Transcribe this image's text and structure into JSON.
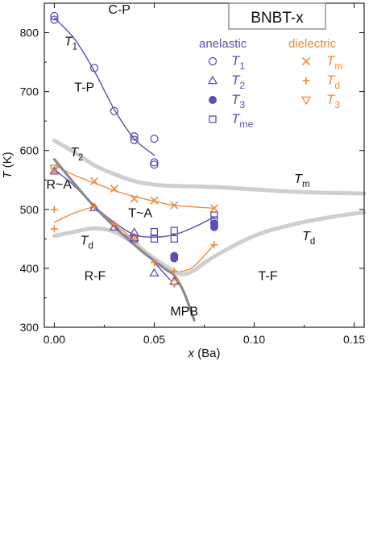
{
  "chart_data": {
    "type": "scatter",
    "title": "BNBT-x",
    "xlabel": "x (Ba)",
    "ylabel": "T (K)",
    "xlim": [
      -0.005,
      0.155
    ],
    "ylim": [
      300,
      850
    ],
    "xticks": [
      0.0,
      0.05,
      0.1,
      0.15
    ],
    "xtick_labels": [
      "0.00",
      "0.05",
      "0.10",
      "0.15"
    ],
    "yticks": [
      300,
      400,
      500,
      600,
      700,
      800
    ],
    "ytick_labels": [
      "300",
      "400",
      "500",
      "600",
      "700",
      "800"
    ],
    "grid": false,
    "legend_placement": "top-right",
    "legend": {
      "anelastic_header": "anelastic",
      "dielectric_header": "dielectric",
      "anelastic_items": [
        {
          "base": "T",
          "sub": "1"
        },
        {
          "base": "T",
          "sub": "2"
        },
        {
          "base": "T",
          "sub": "3"
        },
        {
          "base": "T",
          "sub": "me"
        }
      ],
      "dielectric_items": [
        {
          "base": "T",
          "sub": "m"
        },
        {
          "base": "T",
          "sub": "d"
        },
        {
          "base": "T",
          "sub": "3"
        }
      ]
    },
    "colors": {
      "anelastic": "#5a4fb0",
      "dielectric": "#f08a3c",
      "boundary": "#cfcfcf",
      "mpb_line": "#8a8a8a",
      "text": "#111111"
    },
    "series": [
      {
        "name": "T1",
        "group": "anelastic",
        "marker": "circle-open",
        "x": [
          0.0,
          0.0,
          0.02,
          0.03,
          0.04,
          0.04,
          0.05,
          0.05,
          0.05
        ],
        "y": [
          828,
          822,
          740,
          667,
          624,
          618,
          620,
          580,
          576
        ]
      },
      {
        "name": "T2",
        "group": "anelastic",
        "marker": "triangle-open",
        "x": [
          0.0,
          0.02,
          0.03,
          0.04,
          0.04,
          0.05,
          0.06
        ],
        "y": [
          565,
          503,
          470,
          461,
          452,
          392,
          378
        ]
      },
      {
        "name": "T3",
        "group": "anelastic",
        "marker": "circle-filled",
        "x": [
          0.06,
          0.06,
          0.08,
          0.08
        ],
        "y": [
          421,
          417,
          476,
          470
        ]
      },
      {
        "name": "Tme",
        "group": "anelastic",
        "marker": "square-open",
        "x": [
          0.04,
          0.05,
          0.05,
          0.06,
          0.06,
          0.08,
          0.08
        ],
        "y": [
          450,
          462,
          450,
          464,
          450,
          490,
          482
        ]
      },
      {
        "name": "Tm",
        "group": "dielectric",
        "marker": "x",
        "x": [
          0.0,
          0.02,
          0.03,
          0.04,
          0.05,
          0.06,
          0.08
        ],
        "y": [
          565,
          548,
          535,
          518,
          515,
          507,
          502
        ]
      },
      {
        "name": "Td",
        "group": "dielectric",
        "marker": "plus",
        "x": [
          0.0,
          0.0,
          0.02,
          0.03,
          0.04,
          0.05,
          0.06,
          0.08
        ],
        "y": [
          500,
          467,
          505,
          475,
          450,
          410,
          395,
          440
        ]
      },
      {
        "name": "T3",
        "group": "dielectric",
        "marker": "triangle-down-open",
        "x": [
          0.0,
          0.06
        ],
        "y": [
          570,
          375
        ]
      }
    ],
    "curves": [
      {
        "group": "anelastic",
        "kind": "fit",
        "x": [
          0.0,
          0.01,
          0.02,
          0.03,
          0.04,
          0.05
        ],
        "y": [
          825,
          790,
          735,
          670,
          620,
          592
        ]
      },
      {
        "group": "anelastic",
        "kind": "fit",
        "x": [
          0.0,
          0.01,
          0.02,
          0.03,
          0.04,
          0.05,
          0.058
        ],
        "y": [
          568,
          540,
          505,
          470,
          445,
          410,
          380
        ]
      },
      {
        "group": "anelastic",
        "kind": "fit",
        "x": [
          0.02,
          0.03,
          0.04,
          0.05,
          0.06,
          0.07,
          0.08
        ],
        "y": [
          505,
          478,
          457,
          453,
          457,
          470,
          487
        ]
      },
      {
        "group": "dielectric",
        "kind": "fit",
        "x": [
          0.0,
          0.01,
          0.02,
          0.03,
          0.04,
          0.05,
          0.06,
          0.08
        ],
        "y": [
          575,
          558,
          545,
          532,
          522,
          514,
          507,
          502
        ]
      },
      {
        "group": "dielectric",
        "kind": "fit",
        "x": [
          0.0,
          0.01,
          0.02
        ],
        "y": [
          478,
          494,
          505
        ]
      },
      {
        "group": "dielectric",
        "kind": "fit",
        "x": [
          0.02,
          0.03,
          0.04,
          0.05,
          0.06,
          0.065,
          0.07,
          0.08
        ],
        "y": [
          505,
          475,
          448,
          415,
          396,
          396,
          404,
          440
        ]
      },
      {
        "group": "boundary",
        "kind": "phase",
        "x": [
          0.0,
          0.01,
          0.02,
          0.03,
          0.04,
          0.05,
          0.06,
          0.08,
          0.1,
          0.12,
          0.14,
          0.155
        ],
        "y": [
          617,
          597,
          575,
          560,
          548,
          542,
          540,
          538,
          534,
          530,
          528,
          527
        ]
      },
      {
        "group": "boundary",
        "kind": "phase",
        "x": [
          0.0,
          0.01,
          0.02,
          0.03,
          0.04,
          0.05,
          0.06,
          0.065,
          0.07,
          0.08,
          0.1,
          0.12,
          0.14,
          0.155
        ],
        "y": [
          455,
          462,
          468,
          462,
          442,
          417,
          395,
          390,
          397,
          420,
          455,
          475,
          488,
          495
        ]
      },
      {
        "group": "mpb_line",
        "kind": "phase",
        "x": [
          0.0,
          0.02,
          0.04,
          0.055,
          0.06,
          0.065,
          0.07
        ],
        "y": [
          585,
          505,
          440,
          400,
          388,
          358,
          312
        ]
      }
    ],
    "annotations": [
      {
        "text": "C-P",
        "x": 0.027,
        "y": 832
      },
      {
        "text": "T",
        "sub": "1",
        "x": 0.005,
        "y": 778,
        "italic": true
      },
      {
        "text": "T-P",
        "x": 0.01,
        "y": 700
      },
      {
        "text": "T",
        "sub": "2",
        "x": 0.008,
        "y": 590,
        "italic": true
      },
      {
        "text": "R~A",
        "x": -0.004,
        "y": 535
      },
      {
        "text": "T",
        "sub": "d",
        "x": 0.013,
        "y": 440,
        "italic": true
      },
      {
        "text": "R-F",
        "x": 0.015,
        "y": 380
      },
      {
        "text": "T~A",
        "x": 0.037,
        "y": 487
      },
      {
        "text": "MPB",
        "x": 0.058,
        "y": 320
      },
      {
        "text": "T",
        "sub": "m",
        "x": 0.12,
        "y": 545,
        "italic": true
      },
      {
        "text": "T",
        "sub": "d",
        "x": 0.124,
        "y": 448,
        "italic": true
      },
      {
        "text": "T-F",
        "x": 0.102,
        "y": 380
      }
    ]
  }
}
